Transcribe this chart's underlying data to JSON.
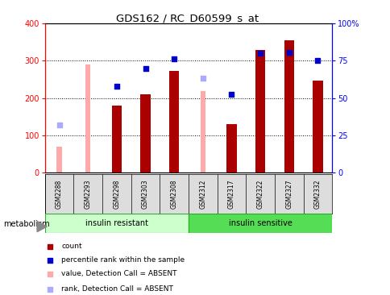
{
  "title": "GDS162 / RC_D60599_s_at",
  "samples": [
    "GSM2288",
    "GSM2293",
    "GSM2298",
    "GSM2303",
    "GSM2308",
    "GSM2312",
    "GSM2317",
    "GSM2322",
    "GSM2327",
    "GSM2332"
  ],
  "group1_label": "insulin resistant",
  "group2_label": "insulin sensitive",
  "ylim_left": [
    0,
    400
  ],
  "ylim_right": [
    0,
    100
  ],
  "yticks_left": [
    0,
    100,
    200,
    300,
    400
  ],
  "yticks_right": [
    0,
    25,
    50,
    75,
    100
  ],
  "yticklabels_right": [
    "0",
    "25",
    "50",
    "75",
    "100%"
  ],
  "count_bars": [
    null,
    null,
    180,
    210,
    272,
    null,
    130,
    330,
    355,
    248
  ],
  "rank_dots": [
    null,
    null,
    232,
    280,
    305,
    null,
    210,
    320,
    322,
    300
  ],
  "absent_value_bars": [
    70,
    290,
    null,
    null,
    null,
    218,
    null,
    null,
    null,
    null
  ],
  "absent_rank_dots": [
    127,
    null,
    null,
    null,
    null,
    253,
    null,
    null,
    null,
    null
  ],
  "count_color": "#aa0000",
  "rank_color": "#0000cc",
  "absent_value_color": "#ffaaaa",
  "absent_rank_color": "#aaaaff",
  "group1_bg": "#ccffcc",
  "group2_bg": "#55dd55",
  "tick_label_bg": "#dddddd",
  "legend_items": [
    {
      "label": "count",
      "color": "#aa0000"
    },
    {
      "label": "percentile rank within the sample",
      "color": "#0000cc"
    },
    {
      "label": "value, Detection Call = ABSENT",
      "color": "#ffaaaa"
    },
    {
      "label": "rank, Detection Call = ABSENT",
      "color": "#aaaaff"
    }
  ]
}
